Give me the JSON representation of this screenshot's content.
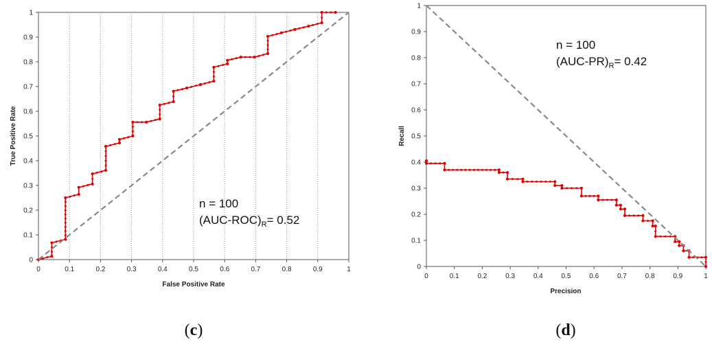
{
  "chart_data": [
    {
      "id": "c",
      "type": "line",
      "caption_open": "(",
      "caption_letter": "c",
      "caption_close": ")",
      "xlabel": "False Positive Rate",
      "ylabel": "True Positive Rate",
      "xlim": [
        0,
        1
      ],
      "ylim": [
        0,
        1
      ],
      "xticks": [
        "0",
        "0.1",
        "0.2",
        "0.3",
        "0.4",
        "0.5",
        "0.6",
        "0.7",
        "0.8",
        "0.9",
        "1"
      ],
      "yticks": [
        "0",
        "0.1",
        "0.2",
        "0.3",
        "0.4",
        "0.5",
        "0.6",
        "0.7",
        "0.8",
        "0.9",
        "1"
      ],
      "grid": "vertical-dotted",
      "annotation": {
        "line1": "n = 100",
        "line2_main": "(AUC-ROC)",
        "line2_sub": "R",
        "line2_tail": "= 0.52"
      },
      "series": [
        {
          "color": "#e00000",
          "x": [
            0,
            0.043,
            0.043,
            0.087,
            0.087,
            0.13,
            0.13,
            0.174,
            0.174,
            0.217,
            0.217,
            0.261,
            0.261,
            0.304,
            0.304,
            0.348,
            0.391,
            0.391,
            0.435,
            0.435,
            0.478,
            0.522,
            0.565,
            0.565,
            0.609,
            0.609,
            0.652,
            0.696,
            0.739,
            0.739,
            0.783,
            0.826,
            0.87,
            0.913,
            0.913,
            0.957
          ],
          "y": [
            0,
            0.014,
            0.068,
            0.082,
            0.25,
            0.264,
            0.292,
            0.306,
            0.347,
            0.361,
            0.458,
            0.472,
            0.486,
            0.5,
            0.556,
            0.556,
            0.569,
            0.625,
            0.639,
            0.681,
            0.694,
            0.708,
            0.722,
            0.778,
            0.792,
            0.806,
            0.819,
            0.819,
            0.833,
            0.903,
            0.917,
            0.931,
            0.944,
            0.958,
            1.0,
            1.0
          ]
        },
        {
          "color": "#888888",
          "dashed": true,
          "x": [
            0,
            1
          ],
          "y": [
            0,
            1
          ]
        }
      ]
    },
    {
      "id": "d",
      "type": "line",
      "caption_open": "(",
      "caption_letter": "d",
      "caption_close": ")",
      "xlabel": "Precision",
      "ylabel": "Recall",
      "xlim": [
        0,
        1
      ],
      "ylim": [
        0,
        1
      ],
      "xticks": [
        "0",
        "0.1",
        "0.2",
        "0.3",
        "0.4",
        "0.5",
        "0.6",
        "0.7",
        "0.8",
        "0.9",
        "1"
      ],
      "yticks": [
        "0",
        "0.1",
        "0.2",
        "0.3",
        "0.4",
        "0.5",
        "0.6",
        "0.7",
        "0.8",
        "0.9",
        "1"
      ],
      "grid": "none",
      "annotation": {
        "line1": "n = 100",
        "line2_main": "(AUC-PR)",
        "line2_sub": "R",
        "line2_tail": "= 0.42"
      },
      "series": [
        {
          "color": "#e00000",
          "x": [
            0,
            0,
            0.065,
            0.065,
            0.26,
            0.26,
            0.29,
            0.29,
            0.345,
            0.345,
            0.46,
            0.46,
            0.485,
            0.485,
            0.555,
            0.555,
            0.615,
            0.615,
            0.68,
            0.68,
            0.695,
            0.695,
            0.71,
            0.71,
            0.775,
            0.775,
            0.81,
            0.81,
            0.82,
            0.82,
            0.89,
            0.89,
            0.905,
            0.905,
            0.92,
            0.92,
            0.94,
            0.94,
            1.0,
            1.0
          ],
          "y": [
            0.405,
            0.395,
            0.395,
            0.37,
            0.37,
            0.36,
            0.36,
            0.335,
            0.335,
            0.325,
            0.325,
            0.31,
            0.31,
            0.3,
            0.3,
            0.27,
            0.27,
            0.255,
            0.255,
            0.235,
            0.235,
            0.22,
            0.22,
            0.195,
            0.195,
            0.175,
            0.175,
            0.155,
            0.155,
            0.115,
            0.115,
            0.095,
            0.095,
            0.08,
            0.08,
            0.06,
            0.06,
            0.035,
            0.035,
            0.0
          ]
        },
        {
          "color": "#888888",
          "dashed": true,
          "x": [
            0,
            1
          ],
          "y": [
            1,
            0
          ]
        }
      ]
    }
  ]
}
